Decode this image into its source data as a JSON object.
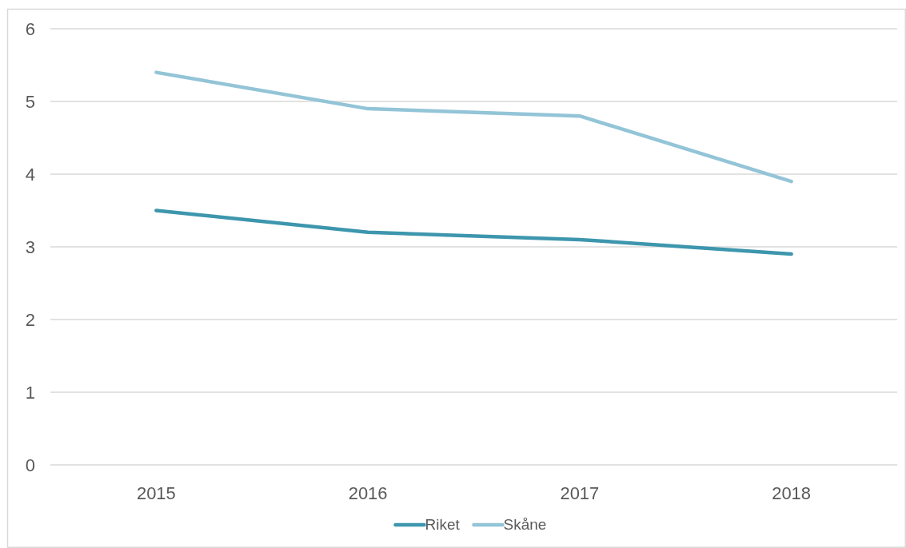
{
  "chart_data": {
    "type": "line",
    "categories": [
      "2015",
      "2016",
      "2017",
      "2018"
    ],
    "series": [
      {
        "name": "Riket",
        "color": "#3d96ad",
        "values": [
          3.5,
          3.2,
          3.1,
          2.9
        ]
      },
      {
        "name": "Skåne",
        "color": "#93c4d7",
        "values": [
          5.4,
          4.9,
          4.8,
          3.9
        ]
      }
    ],
    "ylim": [
      0,
      6
    ],
    "yticks": [
      0,
      1,
      2,
      3,
      4,
      5,
      6
    ],
    "grid": "y",
    "legend": "bottom",
    "marker": "none",
    "line_style": "solid"
  }
}
